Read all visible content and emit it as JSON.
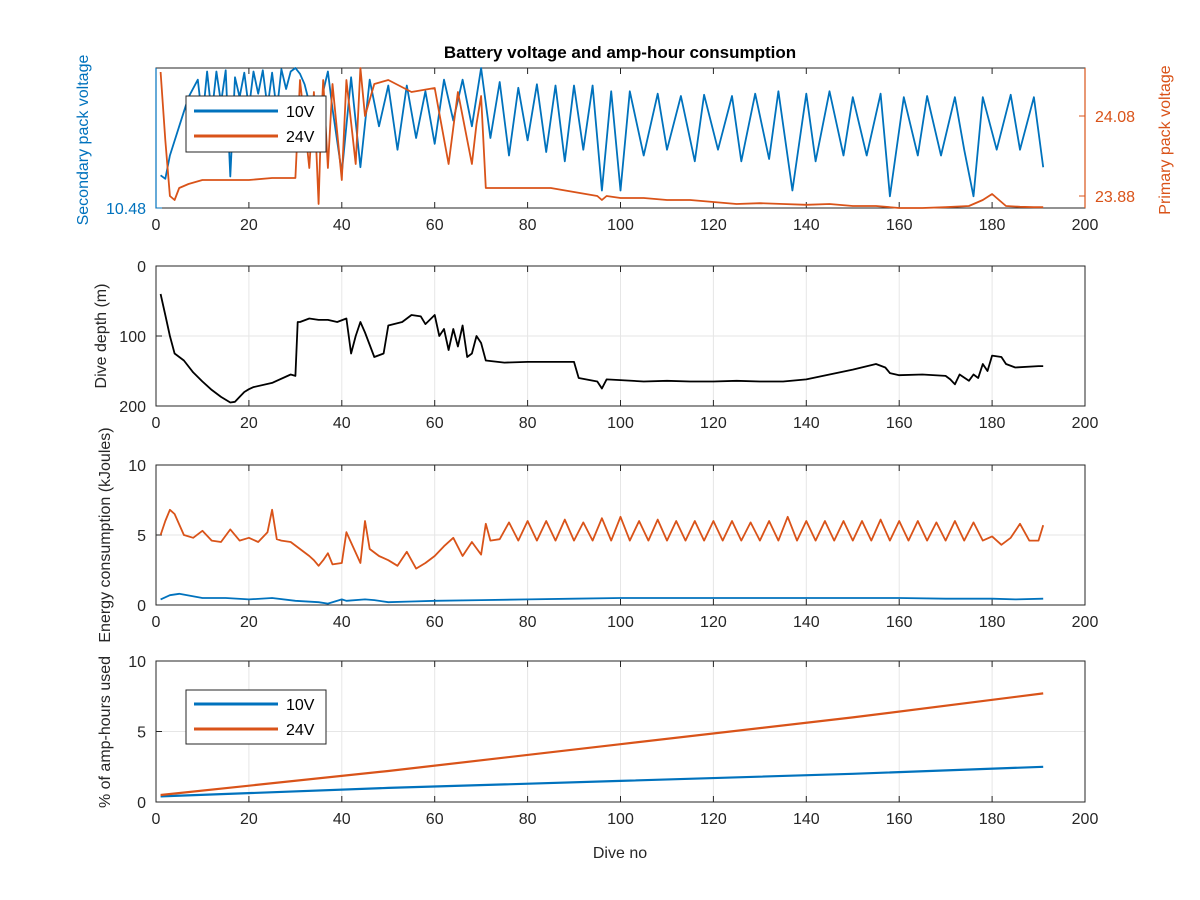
{
  "figure": {
    "title": "Battery voltage and amp-hour consumption",
    "colors": {
      "series10V": "#0072BD",
      "series24V": "#D95319",
      "depth": "#000000",
      "axis": "#262626",
      "grid": "#e6e6e6"
    }
  },
  "chart_data": [
    {
      "type": "line",
      "title": "Battery voltage and amp-hour consumption",
      "xlabel": "",
      "ylabel_left": "Secondary pack voltage",
      "ylabel_right": "Primary pack voltage",
      "xlim": [
        0,
        200
      ],
      "xticks": [
        0,
        20,
        40,
        60,
        80,
        100,
        120,
        140,
        160,
        180,
        200
      ],
      "ylim_left": [
        10.48,
        10.6
      ],
      "yticks_left": [
        10.48
      ],
      "ylim_right": [
        23.85,
        24.2
      ],
      "yticks_right": [
        23.88,
        24.08
      ],
      "grid": false,
      "legend": {
        "placement": "top-left",
        "entries": [
          "10V",
          "24V"
        ]
      },
      "series": [
        {
          "name": "10V",
          "axis": "left",
          "x": [
            1,
            2,
            3,
            5,
            7,
            9,
            10,
            11,
            12,
            13,
            14,
            15,
            16,
            17,
            18,
            19,
            20,
            21,
            22,
            23,
            24,
            25,
            26,
            27,
            28,
            29,
            30,
            31,
            32,
            33,
            34,
            35,
            36,
            37,
            38,
            40,
            42,
            44,
            46,
            48,
            50,
            52,
            54,
            56,
            58,
            60,
            62,
            64,
            66,
            68,
            70,
            72,
            74,
            76,
            78,
            80,
            82,
            84,
            86,
            88,
            90,
            92,
            94,
            96,
            98,
            100,
            102,
            105,
            108,
            110,
            113,
            116,
            118,
            121,
            124,
            126,
            129,
            132,
            134,
            137,
            140,
            142,
            145,
            148,
            150,
            153,
            156,
            158,
            161,
            164,
            166,
            169,
            172,
            174,
            176,
            178,
            181,
            184,
            186,
            189,
            191
          ],
          "values": [
            10.508,
            10.505,
            10.525,
            10.55,
            10.575,
            10.59,
            10.555,
            10.597,
            10.56,
            10.597,
            10.57,
            10.598,
            10.507,
            10.592,
            10.575,
            10.596,
            10.565,
            10.597,
            10.578,
            10.598,
            10.566,
            10.596,
            10.563,
            10.599,
            10.582,
            10.597,
            10.6,
            10.595,
            10.586,
            10.57,
            10.555,
            10.545,
            10.58,
            10.597,
            10.565,
            10.51,
            10.592,
            10.515,
            10.59,
            10.55,
            10.585,
            10.53,
            10.585,
            10.54,
            10.58,
            10.535,
            10.59,
            10.555,
            10.59,
            10.55,
            10.602,
            10.54,
            10.588,
            10.525,
            10.583,
            10.538,
            10.586,
            10.528,
            10.585,
            10.52,
            10.585,
            10.53,
            10.585,
            10.495,
            10.58,
            10.495,
            10.58,
            10.525,
            10.578,
            10.53,
            10.576,
            10.52,
            10.577,
            10.53,
            10.576,
            10.52,
            10.578,
            10.522,
            10.58,
            10.495,
            10.578,
            10.52,
            10.58,
            10.525,
            10.575,
            10.525,
            10.578,
            10.49,
            10.575,
            10.525,
            10.576,
            10.525,
            10.575,
            10.53,
            10.49,
            10.575,
            10.53,
            10.577,
            10.53,
            10.575,
            10.515
          ]
        },
        {
          "name": "24V",
          "axis": "right",
          "x": [
            1,
            2,
            3,
            4,
            5,
            7,
            10,
            15,
            20,
            25,
            30,
            31,
            33,
            34,
            35,
            35.5,
            36,
            37,
            38,
            40,
            41,
            43,
            44,
            45,
            47,
            50,
            55,
            60,
            63,
            65,
            68,
            69,
            70,
            71,
            75,
            80,
            85,
            90,
            95,
            96,
            97,
            100,
            105,
            110,
            115,
            120,
            125,
            130,
            135,
            140,
            145,
            150,
            155,
            160,
            165,
            170,
            175,
            178,
            180,
            181,
            183,
            186,
            189,
            191
          ],
          "values": [
            24.19,
            24.02,
            23.88,
            23.87,
            23.9,
            23.91,
            23.92,
            23.92,
            23.92,
            23.925,
            23.925,
            24.17,
            23.95,
            24.14,
            23.86,
            24.05,
            24.17,
            23.95,
            24.16,
            23.92,
            24.17,
            23.96,
            24.21,
            24.08,
            24.16,
            24.17,
            24.14,
            24.15,
            23.96,
            24.14,
            23.96,
            24.06,
            24.13,
            23.9,
            23.9,
            23.9,
            23.9,
            23.89,
            23.88,
            23.87,
            23.88,
            23.875,
            23.875,
            23.87,
            23.87,
            23.865,
            23.86,
            23.862,
            23.86,
            23.858,
            23.86,
            23.855,
            23.855,
            23.85,
            23.85,
            23.852,
            23.855,
            23.87,
            23.885,
            23.875,
            23.855,
            23.853,
            23.852,
            23.852
          ]
        }
      ]
    },
    {
      "type": "line",
      "ylabel": "Dive depth (m)",
      "xlim": [
        0,
        200
      ],
      "xticks": [
        0,
        20,
        40,
        60,
        80,
        100,
        120,
        140,
        160,
        180,
        200
      ],
      "ylim": [
        0,
        200
      ],
      "yticks": [
        0,
        100,
        200
      ],
      "y_reversed": true,
      "grid": true,
      "series": [
        {
          "name": "",
          "x": [
            1,
            2,
            3,
            4,
            6,
            8,
            10,
            12,
            14,
            16,
            17,
            18,
            19,
            20,
            21,
            25,
            29,
            30,
            30.5,
            31,
            33,
            35,
            37,
            39,
            41,
            42,
            43,
            44,
            45,
            47,
            49,
            50,
            53,
            55,
            57,
            58,
            60,
            61,
            62,
            63,
            64,
            65,
            66,
            67,
            68,
            69,
            70,
            71,
            75,
            80,
            85,
            90,
            91,
            95,
            96,
            97,
            100,
            105,
            110,
            115,
            120,
            125,
            130,
            135,
            140,
            145,
            150,
            155,
            157,
            158,
            160,
            165,
            170,
            171,
            172,
            173,
            175,
            176,
            177,
            178,
            179,
            180,
            182,
            183,
            185,
            190,
            191
          ],
          "values": [
            40,
            70,
            100,
            125,
            135,
            152,
            165,
            177,
            187,
            195,
            194,
            187,
            180,
            176,
            173,
            167,
            155,
            157,
            80,
            80,
            75,
            77,
            77,
            80,
            75,
            125,
            100,
            80,
            95,
            130,
            125,
            85,
            80,
            70,
            72,
            83,
            70,
            100,
            90,
            120,
            90,
            115,
            85,
            130,
            125,
            100,
            110,
            135,
            138,
            137,
            137,
            137,
            160,
            165,
            175,
            162,
            163,
            165,
            164,
            165,
            165,
            164,
            165,
            165,
            162,
            155,
            148,
            140,
            145,
            153,
            156,
            155,
            157,
            162,
            169,
            155,
            164,
            155,
            160,
            140,
            150,
            128,
            130,
            140,
            145,
            143,
            143
          ]
        }
      ]
    },
    {
      "type": "line",
      "ylabel": "Energy consumption (kJoules)",
      "xlim": [
        0,
        200
      ],
      "xticks": [
        0,
        20,
        40,
        60,
        80,
        100,
        120,
        140,
        160,
        180,
        200
      ],
      "ylim": [
        0,
        10
      ],
      "yticks": [
        0,
        5,
        10
      ],
      "grid": true,
      "series": [
        {
          "name": "24V",
          "x": [
            1,
            2,
            3,
            4,
            6,
            8,
            10,
            12,
            14,
            16,
            18,
            20,
            22,
            24,
            25,
            26,
            27,
            29,
            31,
            33,
            34,
            35,
            36,
            37,
            38,
            40,
            41,
            44,
            45,
            46,
            48,
            50,
            52,
            54,
            56,
            58,
            60,
            62,
            64,
            66,
            68,
            70,
            71,
            72,
            74,
            76,
            78,
            80,
            82,
            84,
            86,
            88,
            90,
            92,
            94,
            96,
            98,
            100,
            102,
            104,
            106,
            108,
            110,
            112,
            114,
            116,
            118,
            120,
            122,
            124,
            126,
            128,
            130,
            132,
            134,
            136,
            138,
            140,
            142,
            144,
            146,
            148,
            150,
            152,
            154,
            156,
            158,
            160,
            162,
            164,
            166,
            168,
            170,
            172,
            174,
            176,
            178,
            180,
            182,
            184,
            186,
            188,
            190,
            191
          ],
          "values": [
            5.0,
            6.0,
            6.8,
            6.5,
            5.0,
            4.8,
            5.3,
            4.6,
            4.5,
            5.4,
            4.6,
            4.8,
            4.5,
            5.2,
            6.8,
            4.7,
            4.6,
            4.5,
            4.0,
            3.5,
            3.2,
            2.8,
            3.2,
            3.7,
            2.9,
            3.0,
            5.2,
            3.0,
            6.0,
            4.0,
            3.5,
            3.2,
            2.8,
            3.8,
            2.6,
            3.0,
            3.5,
            4.2,
            4.8,
            3.5,
            4.5,
            3.6,
            5.8,
            4.6,
            4.7,
            5.9,
            4.6,
            6.0,
            4.6,
            6.0,
            4.6,
            6.1,
            4.6,
            5.9,
            4.6,
            6.2,
            4.6,
            6.3,
            4.6,
            6.0,
            4.6,
            6.1,
            4.6,
            6.0,
            4.6,
            6.0,
            4.6,
            6.0,
            4.6,
            6.0,
            4.6,
            5.9,
            4.6,
            6.0,
            4.6,
            6.3,
            4.6,
            6.0,
            4.6,
            6.0,
            4.6,
            6.0,
            4.6,
            6.0,
            4.6,
            6.1,
            4.6,
            6.0,
            4.6,
            6.0,
            4.6,
            5.9,
            4.6,
            6.0,
            4.6,
            5.9,
            4.6,
            4.9,
            4.3,
            4.8,
            5.8,
            4.6,
            4.6,
            5.7
          ]
        },
        {
          "name": "10V",
          "x": [
            1,
            3,
            5,
            10,
            15,
            20,
            25,
            30,
            35,
            37,
            40,
            41,
            45,
            47,
            50,
            55,
            60,
            70,
            80,
            90,
            100,
            110,
            120,
            130,
            140,
            150,
            160,
            170,
            180,
            185,
            191
          ],
          "values": [
            0.4,
            0.7,
            0.8,
            0.5,
            0.5,
            0.4,
            0.5,
            0.3,
            0.2,
            0.1,
            0.4,
            0.3,
            0.4,
            0.35,
            0.2,
            0.25,
            0.3,
            0.35,
            0.4,
            0.45,
            0.5,
            0.5,
            0.5,
            0.5,
            0.5,
            0.5,
            0.5,
            0.45,
            0.45,
            0.4,
            0.45
          ]
        }
      ]
    },
    {
      "type": "line",
      "xlabel": "Dive no",
      "ylabel": "% of amp-hours used",
      "xlim": [
        0,
        200
      ],
      "xticks": [
        0,
        20,
        40,
        60,
        80,
        100,
        120,
        140,
        160,
        180,
        200
      ],
      "ylim": [
        0,
        10
      ],
      "yticks": [
        0,
        5,
        10
      ],
      "grid": true,
      "legend": {
        "placement": "top-left",
        "entries": [
          "10V",
          "24V"
        ]
      },
      "series": [
        {
          "name": "10V",
          "x": [
            1,
            50,
            100,
            150,
            191
          ],
          "values": [
            0.4,
            1.0,
            1.5,
            2.0,
            2.5
          ]
        },
        {
          "name": "24V",
          "x": [
            1,
            50,
            100,
            150,
            191
          ],
          "values": [
            0.5,
            2.2,
            4.1,
            6.0,
            7.7
          ]
        }
      ]
    }
  ]
}
